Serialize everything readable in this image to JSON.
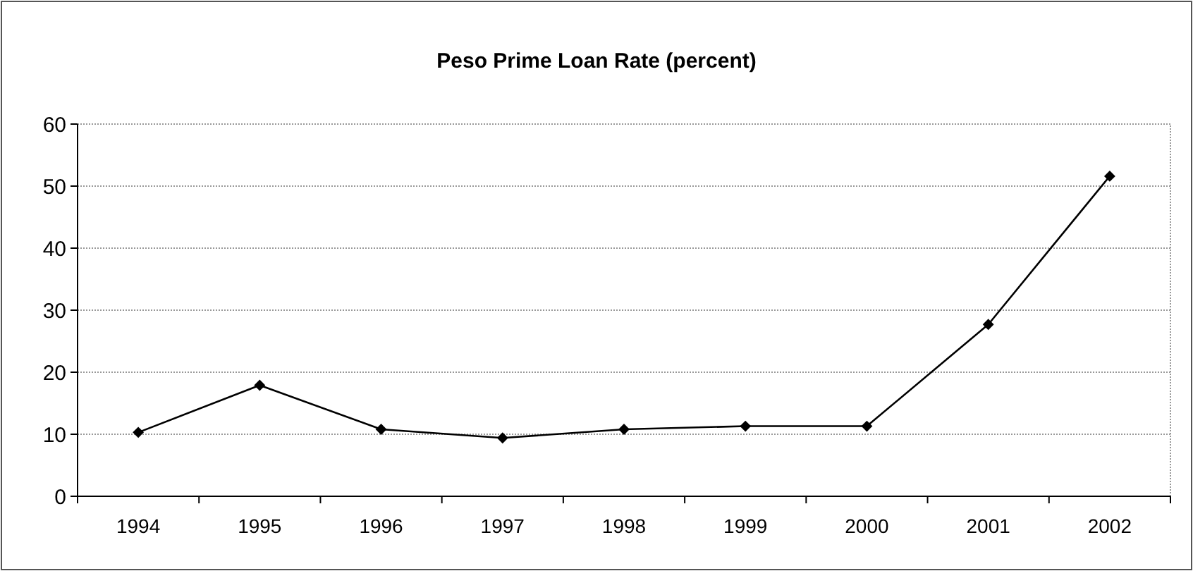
{
  "chart_data": {
    "type": "line",
    "title": "Peso Prime Loan Rate (percent)",
    "categories": [
      "1994",
      "1995",
      "1996",
      "1997",
      "1998",
      "1999",
      "2000",
      "2001",
      "2002"
    ],
    "series": [
      {
        "color": "#000000",
        "values": [
          10.3,
          17.9,
          10.8,
          9.4,
          10.8,
          11.3,
          11.3,
          27.7,
          51.6
        ]
      }
    ],
    "ylim": [
      0,
      60
    ],
    "yticks": [
      0,
      10,
      20,
      30,
      40,
      50,
      60
    ],
    "grid": "y",
    "marker": "diamond",
    "line_style": "solid"
  }
}
